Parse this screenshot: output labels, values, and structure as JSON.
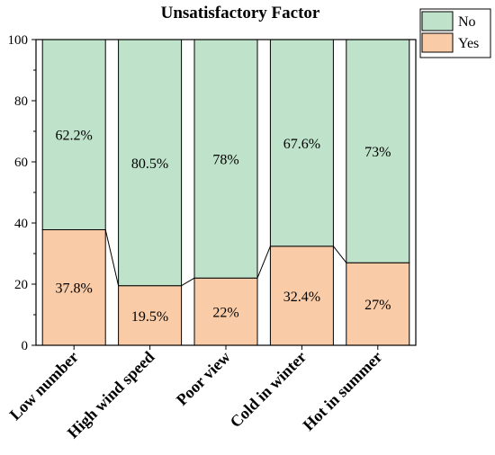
{
  "chart_data": {
    "type": "bar",
    "stacked": true,
    "title": "Unsatisfactory Factor",
    "categories": [
      "Low number",
      "High wind speed",
      "Poor view",
      "Cold in winter",
      "Hot in summer"
    ],
    "series": [
      {
        "name": "Yes",
        "color": "#FACBA7",
        "values": [
          37.8,
          19.5,
          22,
          32.4,
          27
        ],
        "labels": [
          "37.8%",
          "19.5%",
          "22%",
          "32.4%",
          "27%"
        ]
      },
      {
        "name": "No",
        "color": "#BFE3CA",
        "values": [
          62.2,
          80.5,
          78,
          67.6,
          73
        ],
        "labels": [
          "62.2%",
          "80.5%",
          "78%",
          "67.6%",
          "73%"
        ]
      }
    ],
    "ylim": [
      0,
      100
    ],
    "yticks": [
      0,
      20,
      40,
      60,
      80,
      100
    ],
    "legend": {
      "position": "top-right"
    },
    "grid": false,
    "connector_lines": true
  }
}
